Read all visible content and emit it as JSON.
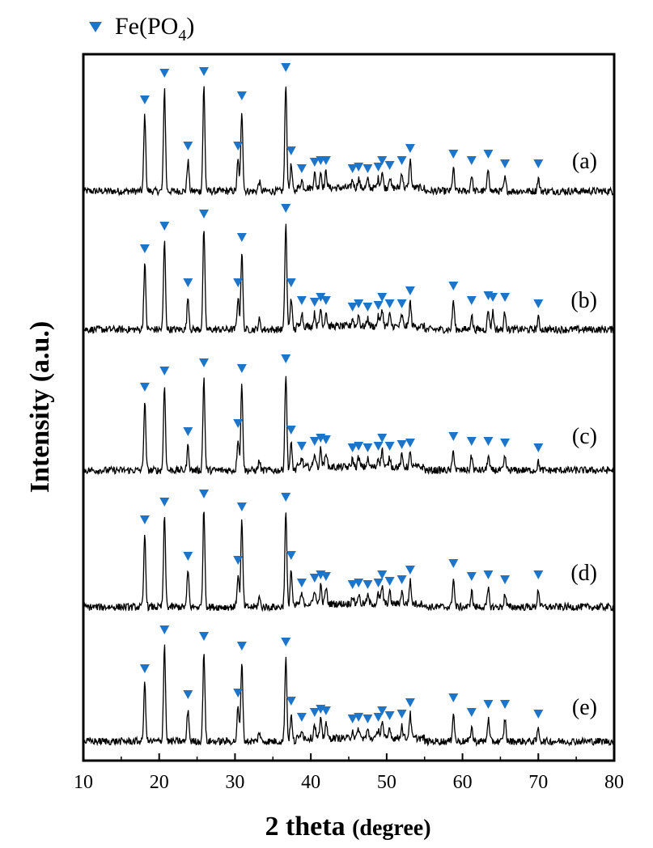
{
  "chart_data": {
    "type": "line",
    "title": "",
    "xlabel": "2 theta",
    "xlabel_suffix": "(degree)",
    "ylabel": "Intensity (a.u.)",
    "xlim": [
      10,
      80
    ],
    "x_ticks": [
      10,
      20,
      30,
      40,
      50,
      60,
      70,
      80
    ],
    "y_ticks_shown": false,
    "grid": false,
    "legend": {
      "placement": "top-left, above plot",
      "marker": "downward-triangle",
      "label": "Fe(PO",
      "label_subscript": "4",
      "label_suffix": ")",
      "color": "#1e74c6"
    },
    "curve_color": "#000000",
    "series": [
      {
        "name": "(a)",
        "peaks": [
          {
            "x": 18.1,
            "h": 95
          },
          {
            "x": 20.7,
            "h": 128
          },
          {
            "x": 23.8,
            "h": 38
          },
          {
            "x": 25.9,
            "h": 130
          },
          {
            "x": 30.4,
            "h": 38
          },
          {
            "x": 30.9,
            "h": 100
          },
          {
            "x": 33.2,
            "h": 12
          },
          {
            "x": 36.7,
            "h": 135
          },
          {
            "x": 37.4,
            "h": 32
          },
          {
            "x": 38.8,
            "h": 10
          },
          {
            "x": 40.5,
            "h": 18
          },
          {
            "x": 41.3,
            "h": 20
          },
          {
            "x": 42.0,
            "h": 20
          },
          {
            "x": 45.5,
            "h": 10
          },
          {
            "x": 46.3,
            "h": 12
          },
          {
            "x": 47.5,
            "h": 10
          },
          {
            "x": 48.9,
            "h": 12
          },
          {
            "x": 49.4,
            "h": 20
          },
          {
            "x": 50.4,
            "h": 14
          },
          {
            "x": 52.0,
            "h": 20
          },
          {
            "x": 53.1,
            "h": 35
          },
          {
            "x": 58.8,
            "h": 28
          },
          {
            "x": 61.2,
            "h": 20
          },
          {
            "x": 63.4,
            "h": 28
          },
          {
            "x": 65.6,
            "h": 16
          },
          {
            "x": 70.0,
            "h": 16
          }
        ],
        "markers": [
          18.1,
          20.7,
          23.8,
          25.9,
          30.4,
          30.9,
          36.7,
          37.4,
          38.8,
          40.5,
          41.3,
          42.0,
          45.5,
          46.3,
          47.5,
          48.9,
          49.4,
          50.4,
          52.0,
          53.1,
          58.8,
          61.2,
          63.4,
          65.6,
          70.0
        ]
      },
      {
        "name": "(b)",
        "peaks": [
          {
            "x": 18.1,
            "h": 82
          },
          {
            "x": 20.7,
            "h": 110
          },
          {
            "x": 23.8,
            "h": 40
          },
          {
            "x": 25.9,
            "h": 125
          },
          {
            "x": 30.4,
            "h": 40
          },
          {
            "x": 30.9,
            "h": 96
          },
          {
            "x": 33.2,
            "h": 12
          },
          {
            "x": 36.7,
            "h": 132
          },
          {
            "x": 37.4,
            "h": 40
          },
          {
            "x": 38.8,
            "h": 18
          },
          {
            "x": 40.5,
            "h": 16
          },
          {
            "x": 41.3,
            "h": 22
          },
          {
            "x": 42.0,
            "h": 18
          },
          {
            "x": 45.5,
            "h": 10
          },
          {
            "x": 46.3,
            "h": 14
          },
          {
            "x": 47.5,
            "h": 10
          },
          {
            "x": 48.9,
            "h": 12
          },
          {
            "x": 49.4,
            "h": 22
          },
          {
            "x": 50.4,
            "h": 14
          },
          {
            "x": 52.0,
            "h": 14
          },
          {
            "x": 53.1,
            "h": 30
          },
          {
            "x": 58.8,
            "h": 36
          },
          {
            "x": 61.2,
            "h": 18
          },
          {
            "x": 63.4,
            "h": 24
          },
          {
            "x": 64.0,
            "h": 22
          },
          {
            "x": 65.6,
            "h": 22
          },
          {
            "x": 70.0,
            "h": 14
          }
        ],
        "markers": [
          18.1,
          20.7,
          23.8,
          25.9,
          30.4,
          30.9,
          36.7,
          37.4,
          38.8,
          40.5,
          41.3,
          42.0,
          45.5,
          46.3,
          47.5,
          48.9,
          49.4,
          50.4,
          52.0,
          53.1,
          58.8,
          61.2,
          63.4,
          64.0,
          65.6,
          70.0
        ]
      },
      {
        "name": "(c)",
        "peaks": [
          {
            "x": 18.1,
            "h": 85
          },
          {
            "x": 20.7,
            "h": 105
          },
          {
            "x": 23.8,
            "h": 30
          },
          {
            "x": 25.9,
            "h": 115
          },
          {
            "x": 30.4,
            "h": 40
          },
          {
            "x": 30.9,
            "h": 108
          },
          {
            "x": 33.2,
            "h": 12
          },
          {
            "x": 36.7,
            "h": 120
          },
          {
            "x": 37.4,
            "h": 32
          },
          {
            "x": 38.8,
            "h": 12
          },
          {
            "x": 40.5,
            "h": 18
          },
          {
            "x": 41.3,
            "h": 22
          },
          {
            "x": 42.0,
            "h": 20
          },
          {
            "x": 45.5,
            "h": 10
          },
          {
            "x": 46.3,
            "h": 12
          },
          {
            "x": 47.5,
            "h": 10
          },
          {
            "x": 48.9,
            "h": 12
          },
          {
            "x": 49.4,
            "h": 22
          },
          {
            "x": 50.4,
            "h": 12
          },
          {
            "x": 52.0,
            "h": 14
          },
          {
            "x": 53.1,
            "h": 16
          },
          {
            "x": 58.8,
            "h": 24
          },
          {
            "x": 61.2,
            "h": 18
          },
          {
            "x": 63.4,
            "h": 18
          },
          {
            "x": 65.6,
            "h": 16
          },
          {
            "x": 70.0,
            "h": 10
          }
        ],
        "markers": [
          18.1,
          20.7,
          23.8,
          25.9,
          30.4,
          30.9,
          36.7,
          37.4,
          38.8,
          40.5,
          41.3,
          42.0,
          45.5,
          46.3,
          47.5,
          48.9,
          49.4,
          50.4,
          52.0,
          53.1,
          58.8,
          61.2,
          63.4,
          65.6,
          70.0
        ]
      },
      {
        "name": "(d)",
        "peaks": [
          {
            "x": 18.1,
            "h": 90
          },
          {
            "x": 20.7,
            "h": 112
          },
          {
            "x": 23.8,
            "h": 45
          },
          {
            "x": 25.9,
            "h": 122
          },
          {
            "x": 30.4,
            "h": 40
          },
          {
            "x": 30.9,
            "h": 106
          },
          {
            "x": 33.2,
            "h": 12
          },
          {
            "x": 36.7,
            "h": 118
          },
          {
            "x": 37.4,
            "h": 46
          },
          {
            "x": 38.8,
            "h": 12
          },
          {
            "x": 40.5,
            "h": 18
          },
          {
            "x": 41.3,
            "h": 22
          },
          {
            "x": 42.0,
            "h": 20
          },
          {
            "x": 45.5,
            "h": 10
          },
          {
            "x": 46.3,
            "h": 12
          },
          {
            "x": 47.5,
            "h": 10
          },
          {
            "x": 48.9,
            "h": 12
          },
          {
            "x": 49.4,
            "h": 22
          },
          {
            "x": 50.4,
            "h": 14
          },
          {
            "x": 52.0,
            "h": 16
          },
          {
            "x": 53.1,
            "h": 28
          },
          {
            "x": 58.8,
            "h": 36
          },
          {
            "x": 61.2,
            "h": 20
          },
          {
            "x": 63.4,
            "h": 22
          },
          {
            "x": 65.6,
            "h": 16
          },
          {
            "x": 70.0,
            "h": 22
          }
        ],
        "markers": [
          18.1,
          20.7,
          23.8,
          25.9,
          30.4,
          30.9,
          36.7,
          37.4,
          38.8,
          40.5,
          41.3,
          42.0,
          45.5,
          46.3,
          47.5,
          48.9,
          49.4,
          50.4,
          52.0,
          53.1,
          58.8,
          61.2,
          63.4,
          65.6,
          70.0
        ]
      },
      {
        "name": "(e)",
        "peaks": [
          {
            "x": 18.1,
            "h": 72
          },
          {
            "x": 20.7,
            "h": 120
          },
          {
            "x": 23.8,
            "h": 40
          },
          {
            "x": 25.9,
            "h": 112
          },
          {
            "x": 30.4,
            "h": 42
          },
          {
            "x": 30.9,
            "h": 100
          },
          {
            "x": 33.2,
            "h": 12
          },
          {
            "x": 36.7,
            "h": 105
          },
          {
            "x": 37.4,
            "h": 32
          },
          {
            "x": 38.8,
            "h": 12
          },
          {
            "x": 40.5,
            "h": 18
          },
          {
            "x": 41.3,
            "h": 22
          },
          {
            "x": 42.0,
            "h": 20
          },
          {
            "x": 45.5,
            "h": 10
          },
          {
            "x": 46.3,
            "h": 12
          },
          {
            "x": 47.5,
            "h": 10
          },
          {
            "x": 48.9,
            "h": 12
          },
          {
            "x": 49.4,
            "h": 20
          },
          {
            "x": 50.4,
            "h": 14
          },
          {
            "x": 52.0,
            "h": 16
          },
          {
            "x": 53.1,
            "h": 30
          },
          {
            "x": 58.8,
            "h": 36
          },
          {
            "x": 61.2,
            "h": 18
          },
          {
            "x": 63.4,
            "h": 28
          },
          {
            "x": 65.6,
            "h": 28
          },
          {
            "x": 70.0,
            "h": 16
          }
        ],
        "markers": [
          18.1,
          20.7,
          23.8,
          25.9,
          30.4,
          30.9,
          36.7,
          37.4,
          38.8,
          40.5,
          41.3,
          42.0,
          45.5,
          46.3,
          47.5,
          48.9,
          49.4,
          50.4,
          52.0,
          53.1,
          58.8,
          61.2,
          63.4,
          65.6,
          70.0
        ]
      }
    ]
  }
}
